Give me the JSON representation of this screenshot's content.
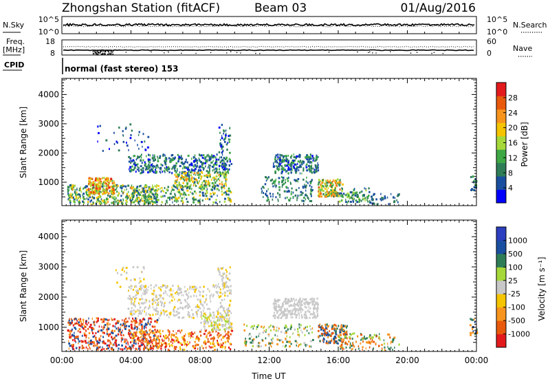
{
  "header": {
    "title": "Zhongshan Station (fitACF)",
    "beam": "Beam 03",
    "date": "01/Aug/2016"
  },
  "panels": {
    "nsky": {
      "label": "N.Sky",
      "left_ticks": [
        "10^5",
        "10^0"
      ],
      "right_label": "N.Search",
      "right_ticks": [
        "10^5",
        "10^0"
      ]
    },
    "freq": {
      "label_line1": "Freq.",
      "label_line2": "[MHz]",
      "left_ticks": [
        "18",
        "8"
      ],
      "right_label": "Nave",
      "right_ticks": [
        "60",
        "0"
      ]
    },
    "cpid": {
      "label": "CPID",
      "value": "normal (fast stereo) 153"
    }
  },
  "colors": {
    "power": [
      "#0000ff",
      "#1a4fa0",
      "#2e7d57",
      "#3ea845",
      "#a6d83a",
      "#f5c400",
      "#f7941d",
      "#e8590c",
      "#e31a1c"
    ],
    "velocity": [
      "#e31a1c",
      "#e8590c",
      "#f7941d",
      "#f5c400",
      "#c8c8c8",
      "#a6d83a",
      "#2e7d57",
      "#1a4fa0",
      "#2b3fbf"
    ]
  },
  "chart_data": [
    {
      "type": "heatmap",
      "name": "power",
      "ylabel": "Slant Range [km]",
      "yticks": [
        "1000",
        "2000",
        "3000",
        "4000"
      ],
      "ylim": [
        200,
        4550
      ],
      "xlim": [
        0,
        24
      ],
      "colorbar": {
        "label": "Power [dB]",
        "ticks": [
          "4",
          "8",
          "12",
          "16",
          "20",
          "24",
          "28"
        ],
        "range": [
          0,
          32
        ]
      },
      "regions": [
        {
          "t": [
            0.3,
            5.5
          ],
          "r": [
            250,
            900
          ],
          "v": [
            4,
            22
          ],
          "n": 420
        },
        {
          "t": [
            1.5,
            3.0
          ],
          "r": [
            600,
            1150
          ],
          "v": [
            14,
            30
          ],
          "n": 180
        },
        {
          "t": [
            3.8,
            9.8
          ],
          "r": [
            1300,
            1950
          ],
          "v": [
            2,
            14
          ],
          "n": 420
        },
        {
          "t": [
            6.5,
            9.5
          ],
          "r": [
            800,
            1350
          ],
          "v": [
            6,
            24
          ],
          "n": 200
        },
        {
          "t": [
            4.0,
            9.8
          ],
          "r": [
            300,
            900
          ],
          "v": [
            4,
            20
          ],
          "n": 260
        },
        {
          "t": [
            2.0,
            5.0
          ],
          "r": [
            2000,
            3000
          ],
          "v": [
            2,
            10
          ],
          "n": 40
        },
        {
          "t": [
            9.0,
            9.7
          ],
          "r": [
            2000,
            3000
          ],
          "v": [
            2,
            12
          ],
          "n": 40
        },
        {
          "t": [
            12.2,
            14.8
          ],
          "r": [
            1300,
            1950
          ],
          "v": [
            2,
            14
          ],
          "n": 240
        },
        {
          "t": [
            11.5,
            14.5
          ],
          "r": [
            350,
            1200
          ],
          "v": [
            4,
            14
          ],
          "n": 140
        },
        {
          "t": [
            14.8,
            16.2
          ],
          "r": [
            500,
            1100
          ],
          "v": [
            8,
            28
          ],
          "n": 160
        },
        {
          "t": [
            16.0,
            17.8
          ],
          "r": [
            300,
            800
          ],
          "v": [
            4,
            16
          ],
          "n": 90
        },
        {
          "t": [
            17.8,
            19.5
          ],
          "r": [
            250,
            600
          ],
          "v": [
            4,
            10
          ],
          "n": 40
        },
        {
          "t": [
            23.6,
            24.0
          ],
          "r": [
            700,
            1200
          ],
          "v": [
            4,
            12
          ],
          "n": 20
        }
      ]
    },
    {
      "type": "heatmap",
      "name": "velocity",
      "xlabel": "Time UT",
      "xticks": [
        "00:00",
        "04:00",
        "08:00",
        "12:00",
        "16:00",
        "20:00",
        "00:00"
      ],
      "ylabel": "Slant Range [km]",
      "yticks": [
        "1000",
        "2000",
        "3000",
        "4000"
      ],
      "ylim": [
        200,
        4550
      ],
      "xlim": [
        0,
        24
      ],
      "colorbar": {
        "label": "Velocity [m s⁻¹]",
        "ticks": [
          "1000",
          "500",
          "100",
          "25",
          "-25",
          "-100",
          "-500",
          "-1000"
        ]
      },
      "regions": [
        {
          "t": [
            0.3,
            5.5
          ],
          "r": [
            250,
            1300
          ],
          "c": [
            0,
            1,
            2,
            7
          ],
          "n": 520
        },
        {
          "t": [
            4.0,
            9.8
          ],
          "r": [
            250,
            900
          ],
          "c": [
            0,
            1,
            2,
            3
          ],
          "n": 300
        },
        {
          "t": [
            3.8,
            9.8
          ],
          "r": [
            1300,
            2400
          ],
          "c": [
            4,
            4,
            4,
            3
          ],
          "n": 420
        },
        {
          "t": [
            8.0,
            9.8
          ],
          "r": [
            900,
            1400
          ],
          "c": [
            4,
            4,
            3,
            5
          ],
          "n": 120
        },
        {
          "t": [
            9.0,
            9.7
          ],
          "r": [
            2000,
            3000
          ],
          "c": [
            4,
            4,
            3
          ],
          "n": 50
        },
        {
          "t": [
            3.0,
            5.0
          ],
          "r": [
            2200,
            3000
          ],
          "c": [
            4,
            3
          ],
          "n": 30
        },
        {
          "t": [
            12.2,
            14.8
          ],
          "r": [
            1300,
            1950
          ],
          "c": [
            4,
            4,
            4
          ],
          "n": 240
        },
        {
          "t": [
            10.5,
            14.5
          ],
          "r": [
            350,
            1100
          ],
          "c": [
            5,
            6,
            2,
            4
          ],
          "n": 140
        },
        {
          "t": [
            14.8,
            16.5
          ],
          "r": [
            450,
            1100
          ],
          "c": [
            1,
            2,
            6,
            7
          ],
          "n": 160
        },
        {
          "t": [
            16.0,
            19.5
          ],
          "r": [
            250,
            800
          ],
          "c": [
            2,
            6,
            5,
            1
          ],
          "n": 110
        },
        {
          "t": [
            23.6,
            24.0
          ],
          "r": [
            700,
            1300
          ],
          "c": [
            6,
            2,
            7
          ],
          "n": 20
        }
      ]
    }
  ]
}
